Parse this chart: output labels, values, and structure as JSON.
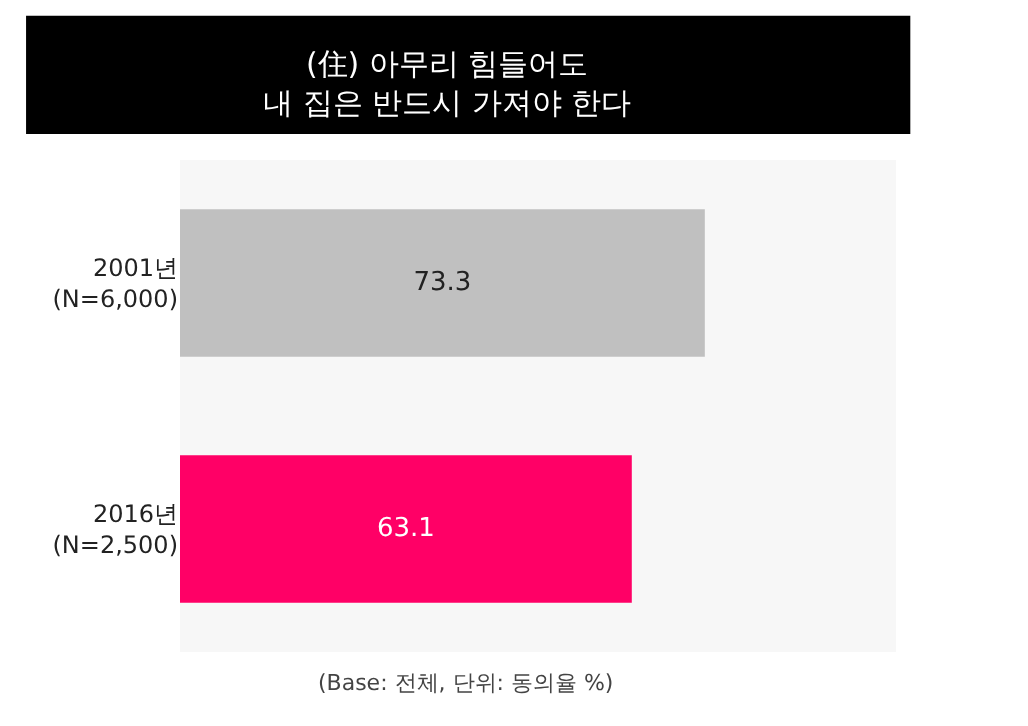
{
  "chart_data": {
    "type": "bar",
    "orientation": "horizontal",
    "title": "(住) 아무리 힘들어도\n내 집은 반드시 가져야 한다",
    "categories": [
      "2001년\n(N=6,000)",
      "2016년\n(N=2,500)"
    ],
    "values": [
      73.3,
      63.1
    ],
    "colors": [
      "#c0c0c0",
      "#ff0066"
    ],
    "xlim": [
      0,
      100
    ],
    "tick_labels": "y",
    "data_labels": true,
    "annotations": [
      "(Base: 전체, 단위: 동의율 %)"
    ]
  }
}
